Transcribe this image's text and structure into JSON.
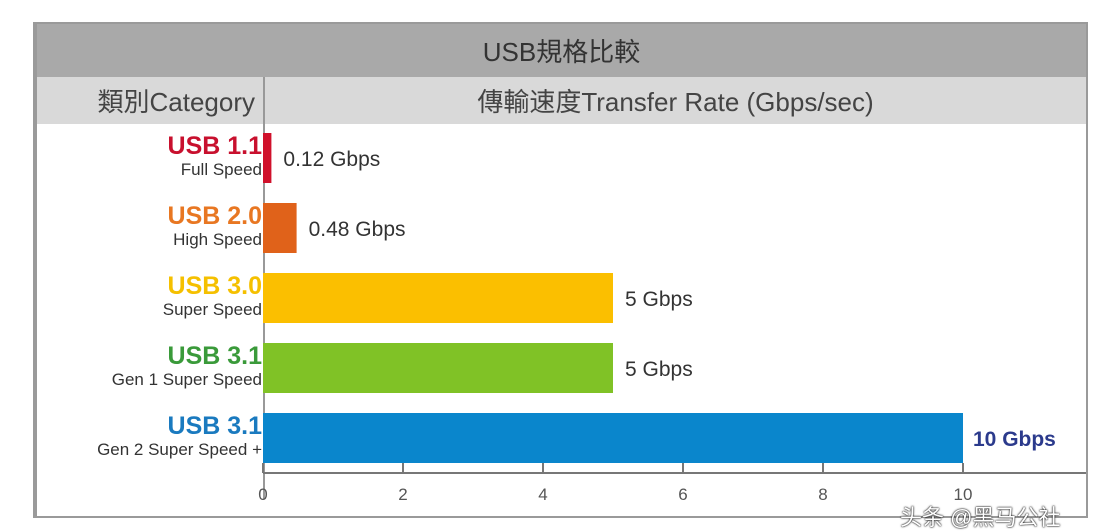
{
  "chart_data": {
    "type": "bar",
    "orientation": "horizontal",
    "title": "USB規格比較",
    "category_header": "類別Category",
    "value_header": "傳輸速度Transfer Rate (Gbps/sec)",
    "categories": [
      {
        "name": "USB 1.1",
        "subtitle": "Full Speed",
        "color": "#c8102e"
      },
      {
        "name": "USB 2.0",
        "subtitle": "High Speed",
        "color": "#e87722"
      },
      {
        "name": "USB 3.0",
        "subtitle": "Super Speed",
        "color": "#f5c000"
      },
      {
        "name": "USB 3.1",
        "subtitle": "Gen 1 Super Speed",
        "color": "#3a9a3a"
      },
      {
        "name": "USB 3.1",
        "subtitle": "Gen 2 Super Speed +",
        "color": "#1a7abf"
      }
    ],
    "values": [
      0.12,
      0.48,
      5,
      5,
      10
    ],
    "data_labels": [
      "0.12 Gbps",
      "0.48 Gbps",
      "5 Gbps",
      "5 Gbps",
      "10 Gbps"
    ],
    "bar_colors": [
      "#d0112b",
      "#e0621a",
      "#fbbf00",
      "#80c226",
      "#0a86cc"
    ],
    "xlim": [
      0,
      10
    ],
    "xticks": [
      "0",
      "2",
      "4",
      "6",
      "8",
      "10"
    ],
    "grid": false
  },
  "watermark": "头条 @黑马公社"
}
